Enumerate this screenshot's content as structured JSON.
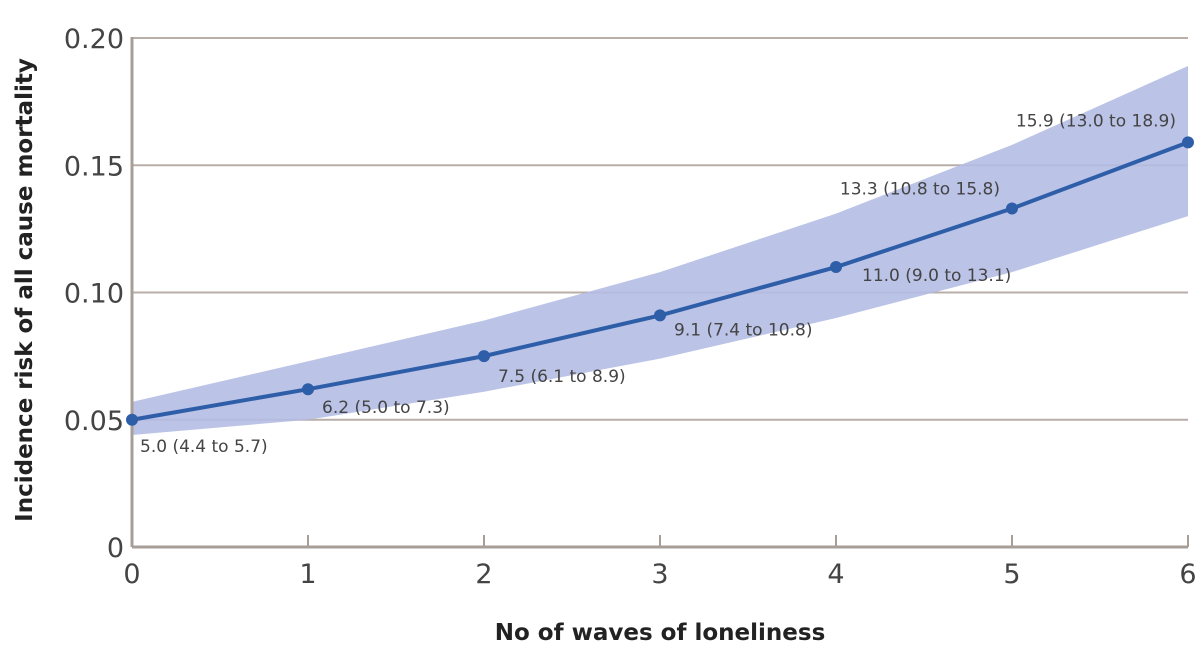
{
  "chart_data": {
    "type": "line",
    "xlabel": "No of waves of loneliness",
    "ylabel": "Incidence risk of all cause mortality",
    "x": [
      0,
      1,
      2,
      3,
      4,
      5,
      6
    ],
    "xlim": [
      0,
      6
    ],
    "ylim": [
      0,
      0.2
    ],
    "xticks": [
      "0",
      "1",
      "2",
      "3",
      "4",
      "5",
      "6"
    ],
    "yticks": [
      {
        "value": 0,
        "label": "0"
      },
      {
        "value": 0.05,
        "label": "0.05"
      },
      {
        "value": 0.1,
        "label": "0.10"
      },
      {
        "value": 0.15,
        "label": "0.15"
      },
      {
        "value": 0.2,
        "label": "0.20"
      }
    ],
    "grid": "horizontal",
    "series": [
      {
        "values": [
          0.05,
          0.062,
          0.075,
          0.091,
          0.11,
          0.133,
          0.159
        ],
        "lower": [
          0.044,
          0.05,
          0.061,
          0.074,
          0.09,
          0.108,
          0.13
        ],
        "upper": [
          0.057,
          0.073,
          0.089,
          0.108,
          0.131,
          0.158,
          0.189
        ]
      }
    ],
    "data_labels": [
      "5.0 (4.4 to 5.7)",
      "6.2 (5.0 to 7.3)",
      "7.5 (6.1 to 8.9)",
      "9.1 (7.4 to 10.8)",
      "11.0 (9.0 to 13.1)",
      "13.3 (10.8 to 15.8)",
      "15.9 (13.0 to 18.9)"
    ],
    "colors": {
      "line": "#2f5ea9",
      "band": "#b4bde4",
      "grid": "#b9aea8",
      "axis": "#a89e98"
    }
  }
}
